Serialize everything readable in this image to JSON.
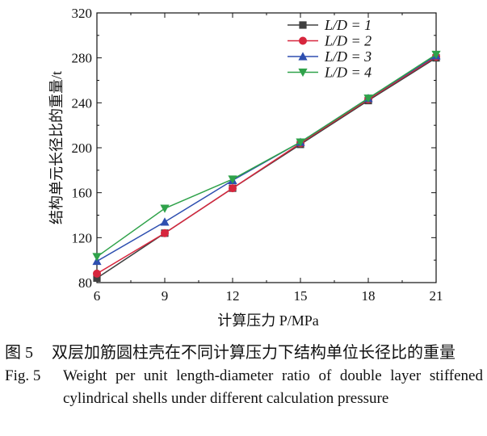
{
  "chart_data": {
    "type": "line",
    "xlabel": "计算压力 P/MPa",
    "ylabel": "结构单元长径比的重量/t",
    "x": [
      6,
      9,
      12,
      15,
      18,
      21
    ],
    "xlim": [
      6,
      21
    ],
    "ylim": [
      80,
      320
    ],
    "xticks": [
      "6",
      "9",
      "12",
      "15",
      "18",
      "21"
    ],
    "yticks": [
      "80",
      "120",
      "160",
      "200",
      "240",
      "280",
      "320"
    ],
    "legend_position": "top-right",
    "grid": false,
    "series": [
      {
        "name": "L/D = 1",
        "color": "#404040",
        "marker": "square",
        "values": [
          84,
          124,
          164,
          203,
          242,
          280
        ]
      },
      {
        "name": "L/D = 2",
        "color": "#d7263d",
        "marker": "circle",
        "values": [
          88,
          124,
          164,
          204,
          243,
          281
        ]
      },
      {
        "name": "L/D = 3",
        "color": "#2e4fb0",
        "marker": "triangle-up",
        "values": [
          99,
          134,
          171,
          205,
          244,
          282
        ]
      },
      {
        "name": "L/D = 4",
        "color": "#2fa24a",
        "marker": "triangle-down",
        "values": [
          103,
          146,
          172,
          205,
          244,
          283
        ]
      }
    ]
  },
  "caption": {
    "cn_label": "图 5",
    "cn_text": "双层加筋圆柱壳在不同计算压力下结构单位长径比的重量",
    "en_label": "Fig. 5",
    "en_text": "Weight per unit length-diameter ratio of double layer stiffened cylindrical shells under different calculation pressure"
  }
}
